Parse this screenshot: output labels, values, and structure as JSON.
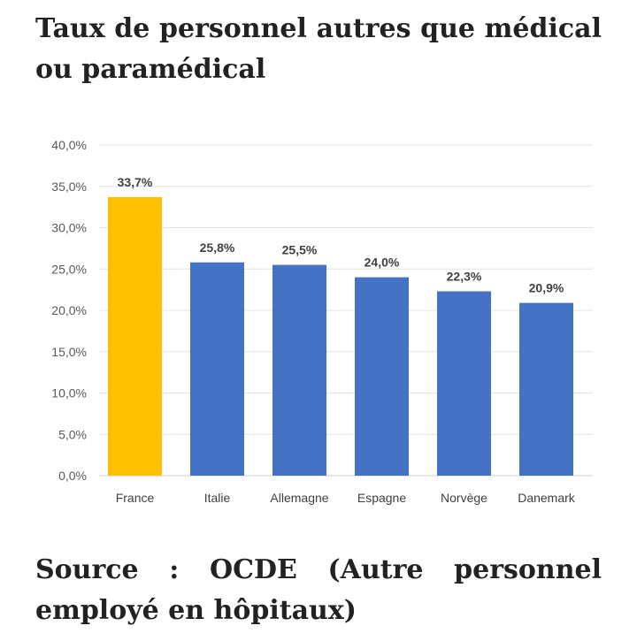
{
  "title": "Taux de personnel autres que médical ou paramédical",
  "source": "Source : OCDE (Autre personnel employé en hôpitaux)",
  "chart_data": {
    "type": "bar",
    "categories": [
      "France",
      "Italie",
      "Allemagne",
      "Espagne",
      "Norvège",
      "Danemark"
    ],
    "values": [
      33.7,
      25.8,
      25.5,
      24.0,
      22.3,
      20.9
    ],
    "data_labels": [
      "33,7%",
      "25,8%",
      "25,5%",
      "24,0%",
      "22,3%",
      "20,9%"
    ],
    "yticks": [
      "0,0%",
      "5,0%",
      "10,0%",
      "15,0%",
      "20,0%",
      "25,0%",
      "30,0%",
      "35,0%",
      "40,0%"
    ],
    "ylim": [
      0,
      40
    ],
    "ytick_step": 5,
    "grid": true,
    "highlight_color": "#FFC000",
    "bar_color": "#4472C4",
    "highlight_index": 0
  }
}
